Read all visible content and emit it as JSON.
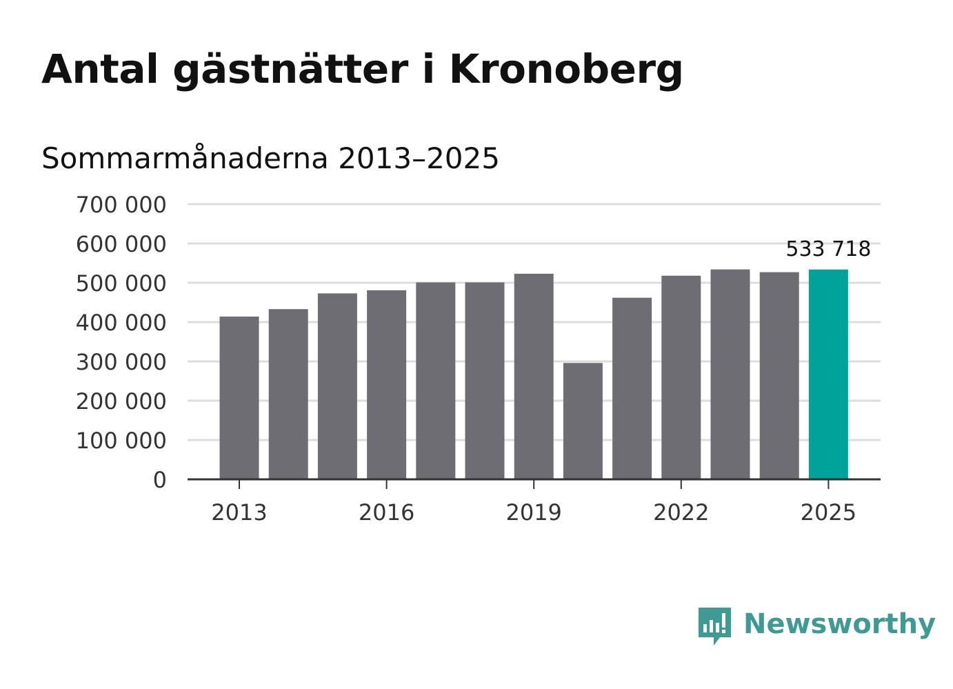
{
  "title": "Antal gästnätter i Kronoberg",
  "subtitle": "Sommarmånaderna 2013–2025",
  "brand": {
    "name": "Newsworthy",
    "color": "#3e9a93",
    "icon": "chat-bubble-bar-chart-icon"
  },
  "chart_data": {
    "type": "bar",
    "categories": [
      "2013",
      "2014",
      "2015",
      "2016",
      "2017",
      "2018",
      "2019",
      "2020",
      "2021",
      "2022",
      "2023",
      "2024",
      "2025"
    ],
    "values": [
      414000,
      433000,
      473000,
      481000,
      501000,
      501000,
      523000,
      296000,
      462000,
      518000,
      534000,
      527000,
      533718
    ],
    "x_tick_labels": [
      "2013",
      "2016",
      "2019",
      "2022",
      "2025"
    ],
    "y_ticks": [
      0,
      100000,
      200000,
      300000,
      400000,
      500000,
      600000,
      700000
    ],
    "y_tick_labels": [
      "0",
      "100 000",
      "200 000",
      "300 000",
      "400 000",
      "500 000",
      "600 000",
      "700 000"
    ],
    "ylim": [
      0,
      700000
    ],
    "grid": true,
    "bar_color": "#6e6d73",
    "highlight_color": "#00a39a",
    "highlight_category": "2025",
    "highlight_label": "533 718"
  }
}
